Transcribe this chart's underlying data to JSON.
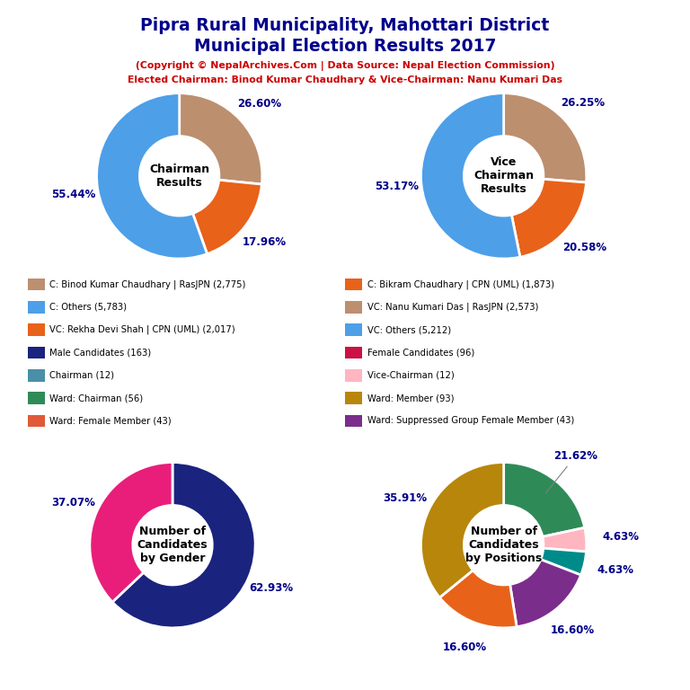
{
  "title_line1": "Pipra Rural Municipality, Mahottari District",
  "title_line2": "Municipal Election Results 2017",
  "subtitle1": "(Copyright © NepalArchives.Com | Data Source: Nepal Election Commission)",
  "subtitle2": "Elected Chairman: Binod Kumar Chaudhary & Vice-Chairman: Nanu Kumari Das",
  "title_color": "#00008B",
  "subtitle_color": "#CC0000",
  "chairman_values": [
    26.6,
    17.96,
    55.44
  ],
  "chairman_colors": [
    "#BC8F6F",
    "#E8621A",
    "#4D9FE8"
  ],
  "chairman_labels": [
    "26.60%",
    "17.96%",
    "55.44%"
  ],
  "chairman_center_text": "Chairman\nResults",
  "vc_values": [
    26.25,
    20.58,
    53.17
  ],
  "vc_colors": [
    "#BC8F6F",
    "#E8621A",
    "#4D9FE8"
  ],
  "vc_labels": [
    "26.25%",
    "20.58%",
    "53.17%"
  ],
  "vc_center_text": "Vice\nChairman\nResults",
  "gender_values": [
    62.93,
    37.07
  ],
  "gender_colors": [
    "#1A237E",
    "#E91E7A"
  ],
  "gender_labels": [
    "62.93%",
    "37.07%"
  ],
  "gender_center_text": "Number of\nCandidates\nby Gender",
  "position_values": [
    21.62,
    4.63,
    4.63,
    16.6,
    16.6,
    35.91
  ],
  "position_colors": [
    "#2E8B57",
    "#FFB6C1",
    "#008B8B",
    "#7B2D8B",
    "#E8621A",
    "#B8860B"
  ],
  "position_labels": [
    "21.62%",
    "4.63%",
    "4.63%",
    "16.60%",
    "16.60%",
    "35.91%"
  ],
  "position_center_text": "Number of\nCandidates\nby Positions",
  "legend_items_left": [
    {
      "label": "C: Binod Kumar Chaudhary | RasJPN (2,775)",
      "color": "#BC8F6F"
    },
    {
      "label": "C: Others (5,783)",
      "color": "#4D9FE8"
    },
    {
      "label": "VC: Rekha Devi Shah | CPN (UML) (2,017)",
      "color": "#E8621A"
    },
    {
      "label": "Male Candidates (163)",
      "color": "#1A237E"
    },
    {
      "label": "Chairman (12)",
      "color": "#4A8FA8"
    },
    {
      "label": "Ward: Chairman (56)",
      "color": "#2E8B57"
    },
    {
      "label": "Ward: Female Member (43)",
      "color": "#E05A3A"
    }
  ],
  "legend_items_right": [
    {
      "label": "C: Bikram Chaudhary | CPN (UML) (1,873)",
      "color": "#E8621A"
    },
    {
      "label": "VC: Nanu Kumari Das | RasJPN (2,573)",
      "color": "#BC8F6F"
    },
    {
      "label": "VC: Others (5,212)",
      "color": "#4D9FE8"
    },
    {
      "label": "Female Candidates (96)",
      "color": "#CC1144"
    },
    {
      "label": "Vice-Chairman (12)",
      "color": "#FFB6C1"
    },
    {
      "label": "Ward: Member (93)",
      "color": "#B8860B"
    },
    {
      "label": "Ward: Suppressed Group Female Member (43)",
      "color": "#7B2D8B"
    }
  ]
}
